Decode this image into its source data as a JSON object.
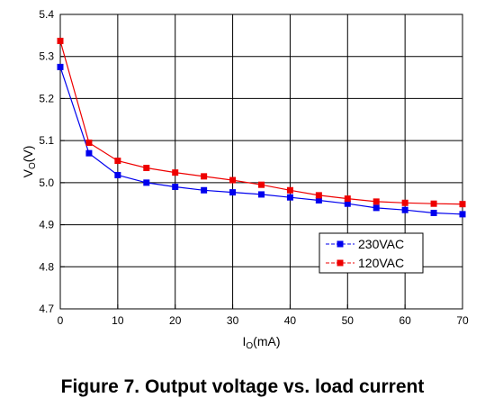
{
  "caption": "Figure 7. Output voltage vs. load current",
  "chart_data": {
    "type": "line",
    "title": "Figure 7. Output voltage vs. load current",
    "xlabel_main": "I",
    "xlabel_sub": "O",
    "xlabel_unit": "(mA)",
    "ylabel_main": "V",
    "ylabel_sub": "O",
    "ylabel_unit": "(V)",
    "xlim": [
      0,
      70
    ],
    "ylim": [
      4.7,
      5.4
    ],
    "xticks": [
      0,
      10,
      20,
      30,
      40,
      50,
      60,
      70
    ],
    "yticks": [
      4.7,
      4.8,
      4.9,
      5.0,
      5.1,
      5.2,
      5.3,
      5.4
    ],
    "ytick_labels": [
      "4.7",
      "4.8",
      "4.9",
      "5.0",
      "5.1",
      "5.2",
      "5.3",
      "5.4"
    ],
    "grid": true,
    "legend_position": "bottom-right",
    "x": [
      0,
      5,
      10,
      15,
      20,
      25,
      30,
      35,
      40,
      45,
      50,
      55,
      60,
      65,
      70
    ],
    "series": [
      {
        "name": "230VAC",
        "color": "#0000ee",
        "values": [
          5.275,
          5.07,
          5.018,
          5.0,
          4.99,
          4.982,
          4.977,
          4.972,
          4.965,
          4.958,
          4.95,
          4.94,
          4.935,
          4.928,
          4.925
        ]
      },
      {
        "name": "120VAC",
        "color": "#ee0000",
        "values": [
          5.337,
          5.095,
          5.052,
          5.035,
          5.024,
          5.015,
          5.006,
          4.995,
          4.982,
          4.97,
          4.962,
          4.955,
          4.952,
          4.95,
          4.949
        ]
      }
    ]
  }
}
